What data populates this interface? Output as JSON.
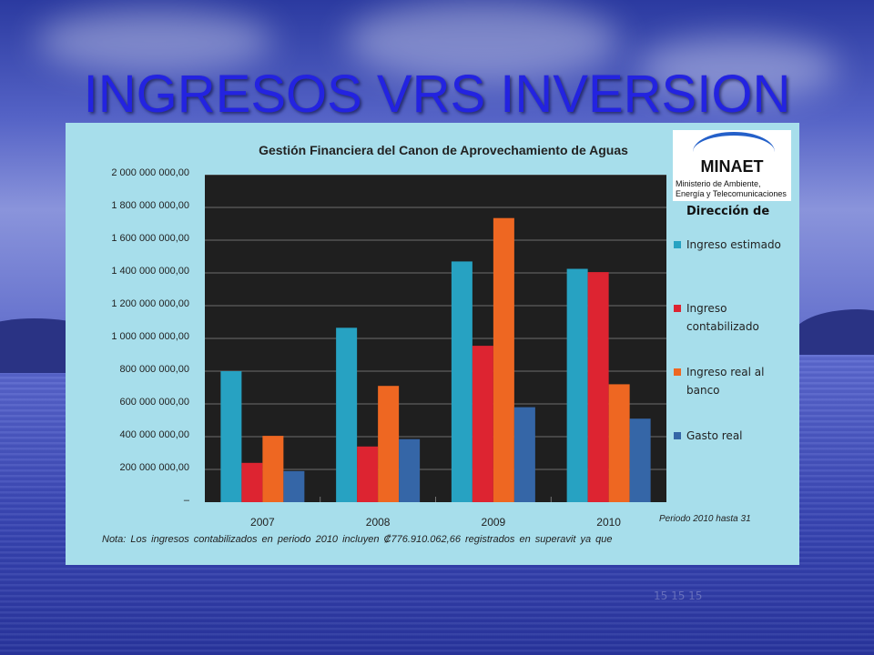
{
  "slide_title": "INGRESOS VRS INVERSION",
  "logo": {
    "name": "MINAET",
    "subtitle_line1": "Ministerio de Ambiente,",
    "subtitle_line2": "Energía y Telecomunicaciones"
  },
  "direccion_label": "Dirección de",
  "periodo_note": "Periodo 2010 hasta 31",
  "nota": "Nota: Los ingresos contabilizados en periodo 2010 incluyen ₡776.910.062,66 registrados en superavit ya que",
  "faint_text": "15 15 15",
  "colors": {
    "ingreso_estimado": "#27a2c2",
    "ingreso_contabilizado": "#dd2431",
    "ingreso_real_banco": "#ee6722",
    "gasto_real": "#3566a7",
    "plot_background": "#1f1f1f",
    "panel_background": "#a7deeb",
    "title": "#2323e0"
  },
  "chart_data": {
    "type": "bar",
    "title": "Gestión Financiera del Canon de Aprovechamiento de Aguas",
    "xlabel": "",
    "ylabel": "",
    "categories": [
      "2007",
      "2008",
      "2009",
      "2010"
    ],
    "ylim": [
      0,
      2000000000
    ],
    "yticks": [
      0,
      200000000,
      400000000,
      600000000,
      800000000,
      1000000000,
      1200000000,
      1400000000,
      1600000000,
      1800000000,
      2000000000
    ],
    "ytick_labels": [
      "–",
      "200 000 000,00",
      "400 000 000,00",
      "600 000 000,00",
      "800 000 000,00",
      "1 000 000 000,00",
      "1 200 000 000,00",
      "1 400 000 000,00",
      "1 600 000 000,00",
      "1 800 000 000,00",
      "2 000 000 000,00"
    ],
    "grid": true,
    "legend_position": "right",
    "series": [
      {
        "name": "Ingreso estimado",
        "color_key": "ingreso_estimado",
        "values": [
          800000000,
          1065000000,
          1470000000,
          1425000000
        ]
      },
      {
        "name": "Ingreso contabilizado",
        "color_key": "ingreso_contabilizado",
        "values": [
          240000000,
          340000000,
          955000000,
          1405000000
        ]
      },
      {
        "name": "Ingreso real al banco",
        "color_key": "ingreso_real_banco",
        "values": [
          405000000,
          710000000,
          1735000000,
          720000000
        ]
      },
      {
        "name": "Gasto real",
        "color_key": "gasto_real",
        "values": [
          190000000,
          385000000,
          580000000,
          510000000
        ]
      }
    ]
  }
}
